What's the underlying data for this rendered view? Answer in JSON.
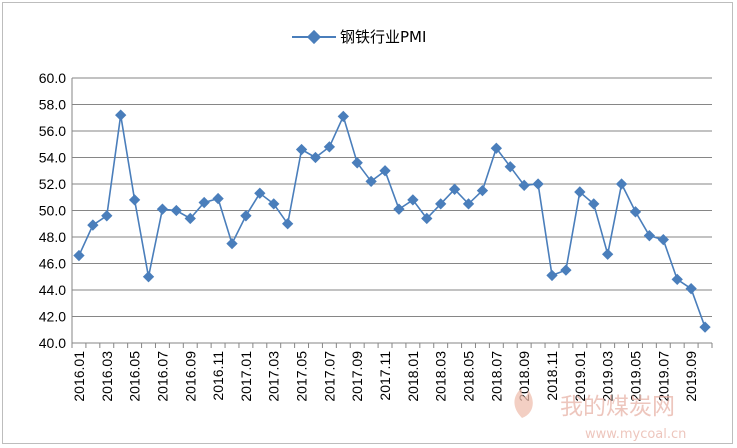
{
  "chart_data": {
    "type": "line",
    "legend_position": "top-center",
    "grid": "horizontal",
    "ylim": [
      40.0,
      60.0
    ],
    "yticks": [
      "40.0",
      "42.0",
      "44.0",
      "46.0",
      "48.0",
      "50.0",
      "52.0",
      "54.0",
      "56.0",
      "58.0",
      "60.0"
    ],
    "x": [
      "2016.01",
      "2016.02",
      "2016.03",
      "2016.04",
      "2016.05",
      "2016.06",
      "2016.07",
      "2016.08",
      "2016.09",
      "2016.10",
      "2016.11",
      "2016.12",
      "2017.01",
      "2017.02",
      "2017.03",
      "2017.04",
      "2017.05",
      "2017.06",
      "2017.07",
      "2017.08",
      "2017.09",
      "2017.10",
      "2017.11",
      "2017.12",
      "2018.01",
      "2018.02",
      "2018.03",
      "2018.04",
      "2018.05",
      "2018.06",
      "2018.07",
      "2018.08",
      "2018.09",
      "2018.10",
      "2018.11",
      "2018.12",
      "2019.01",
      "2019.02",
      "2019.03",
      "2019.04",
      "2019.05",
      "2019.06",
      "2019.07",
      "2019.08",
      "2019.09",
      "2019.10"
    ],
    "xtick_labels": [
      "2016.01",
      "2016.03",
      "2016.05",
      "2016.07",
      "2016.09",
      "2016.11",
      "2017.01",
      "2017.03",
      "2017.05",
      "2017.07",
      "2017.09",
      "2017.11",
      "2018.01",
      "2018.03",
      "2018.05",
      "2018.07",
      "2018.09",
      "2018.11",
      "2019.01",
      "2019.03",
      "2019.05",
      "2019.07",
      "2019.09"
    ],
    "series": [
      {
        "name": "钢铁行业PMI",
        "color": "#4a7ebb",
        "values": [
          46.6,
          48.9,
          49.6,
          57.2,
          50.8,
          45.0,
          50.1,
          50.0,
          49.4,
          50.6,
          50.9,
          47.5,
          49.6,
          51.3,
          50.5,
          49.0,
          54.6,
          54.0,
          54.8,
          57.1,
          53.6,
          52.2,
          53.0,
          50.1,
          50.8,
          49.4,
          50.5,
          51.6,
          50.5,
          51.5,
          54.7,
          53.3,
          51.9,
          52.0,
          45.1,
          45.5,
          51.4,
          50.5,
          46.7,
          52.0,
          49.9,
          48.1,
          47.8,
          44.8,
          44.1,
          41.2
        ]
      }
    ]
  },
  "watermark": {
    "text": "我的煤炭网",
    "url": "www.mycoal.cn"
  }
}
